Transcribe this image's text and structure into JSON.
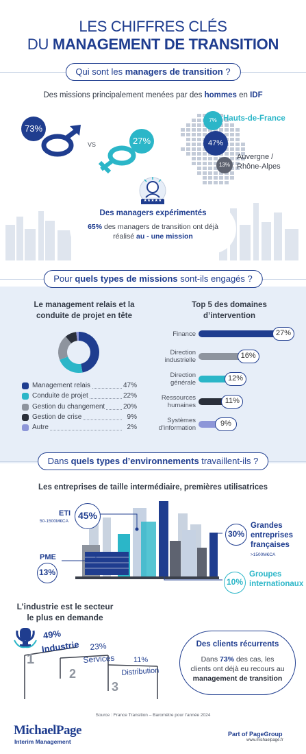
{
  "title": {
    "line1": "LES CHIFFRES CLÉS",
    "line2_prefix": "DU ",
    "line2_bold": "MANAGEMENT DE TRANSITION"
  },
  "section1": {
    "pill": {
      "prefix": "Qui sont les ",
      "bold": "managers de transition",
      "suffix": " ?"
    },
    "subtitle": {
      "prefix": "Des missions principalement menées par des ",
      "bold1": "hommes",
      "mid": " en ",
      "bold2": "IDF"
    },
    "male_pct": "73%",
    "vs": "VS",
    "female_pct": "27%",
    "regions": [
      {
        "pct": "7%",
        "name": "Hauts-de-France"
      },
      {
        "pct": "47%",
        "name": ""
      },
      {
        "pct": "13%",
        "name_line1": "Auvergne /",
        "name_line2": "Rhône-Alpes"
      }
    ],
    "experienced": {
      "title": "Des managers expérimentés",
      "text_pct": "65%",
      "text_line1": " des managers de transition ont déjà",
      "text_line2_prefix": "réalisé ",
      "text_line2_bold": "au - une mission",
      "stars": "★★★★★"
    }
  },
  "section2": {
    "pill": {
      "prefix": "Pour ",
      "bold": "quels types de missions",
      "suffix": " sont-ils engagés ?"
    },
    "left_title_line1": "Le management relais et la",
    "left_title_line2": "conduite de projet en tête",
    "right_title_line1": "Top 5 des domaines",
    "right_title_line2": "d’intervention",
    "donut": [
      {
        "label": "Management relais",
        "pct": "47%",
        "value": 47,
        "color": "#1f3d8f"
      },
      {
        "label": "Conduite de projet",
        "pct": "22%",
        "value": 22,
        "color": "#2bb6c8"
      },
      {
        "label": "Gestion du changement",
        "pct": "20%",
        "value": 20,
        "color": "#8e949e"
      },
      {
        "label": "Gestion de crise",
        "pct": "9%",
        "value": 9,
        "color": "#2a2f3a"
      },
      {
        "label": "Autre",
        "pct": "2%",
        "value": 2,
        "color": "#8d96d8"
      }
    ],
    "domains": [
      {
        "line1": "Finance",
        "line2": "",
        "pct": "27%",
        "value": 27,
        "color": "#1f3d8f"
      },
      {
        "line1": "Direction",
        "line2": "industrielle",
        "pct": "16%",
        "value": 16,
        "color": "#8e949e"
      },
      {
        "line1": "Direction",
        "line2": "générale",
        "pct": "12%",
        "value": 12,
        "color": "#2bb6c8"
      },
      {
        "line1": "Ressources",
        "line2": "humaines",
        "pct": "11%",
        "value": 11,
        "color": "#2a2f3a"
      },
      {
        "line1": "Systèmes",
        "line2": "d’information",
        "pct": "9%",
        "value": 9,
        "color": "#8d96d8"
      }
    ]
  },
  "section3": {
    "pill": {
      "prefix": "Dans ",
      "bold": "quels types d’environnements",
      "suffix": " travaillent-ils ?"
    },
    "subtitle": "Les entreprises de taille intermédiaire, premières utilisatrices",
    "eti": {
      "label": "ETI",
      "sub": "50-1500M€CA",
      "pct": "45%"
    },
    "pme": {
      "label": "PME",
      "pct": "13%"
    },
    "grandes": {
      "pct": "30%",
      "line1": "Grandes",
      "line2": "entreprises",
      "line3": "françaises",
      "sub": ">1500M€CA"
    },
    "groupes": {
      "pct": "10%",
      "line1": "Groupes",
      "line2": "internationaux"
    },
    "industry_title_line1": "L’industrie est le secteur",
    "industry_title_line2": "le plus en demande",
    "podium": [
      {
        "rank": "1",
        "pct": "49%",
        "label": "Industrie"
      },
      {
        "rank": "2",
        "pct": "23%",
        "label": "Services"
      },
      {
        "rank": "3",
        "pct": "11%",
        "label": "Distribution"
      }
    ],
    "clients": {
      "title": "Des clients récurrents",
      "line1_prefix": "Dans ",
      "line1_bold": "73%",
      "line1_suffix": " des cas, les",
      "line2": "clients ont déjà eu recours au",
      "line3": "management de transition"
    }
  },
  "footer": {
    "source": "Source : France Transition – Baromètre pour l’année 2024",
    "brand": "MichaelPage",
    "brand_sub": "Interim Management",
    "part_of": "Part of PageGroup",
    "url": "www.michaelpage.fr"
  }
}
